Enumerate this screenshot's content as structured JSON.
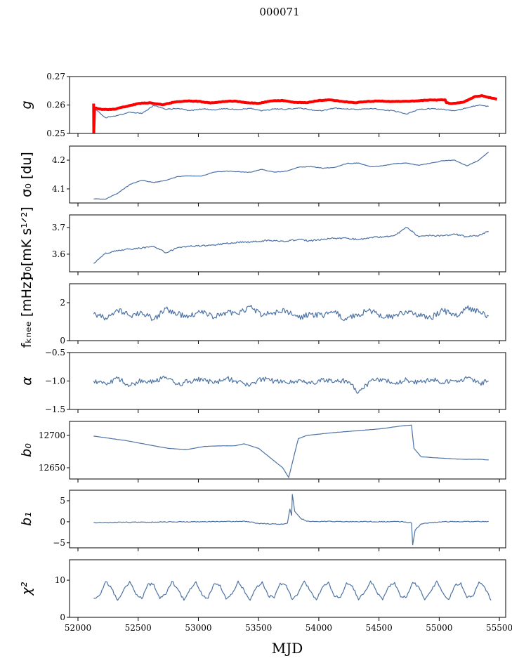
{
  "chart_data": {
    "type": "line",
    "title": "000071",
    "xlabel": "MJD",
    "xlim": [
      51930,
      55552
    ],
    "xticks": [
      52000,
      52500,
      53000,
      53500,
      54000,
      54500,
      55000,
      55500
    ],
    "xtick_labels": [
      "52000",
      "52500",
      "53000",
      "53500",
      "54000",
      "54500",
      "55000",
      "55500"
    ],
    "line_color": "#4c72a4",
    "red_color": "#ff0000",
    "panels": [
      {
        "ylabel": "g",
        "ylim": [
          0.25,
          0.27
        ],
        "yticks": [
          0.25,
          0.26,
          0.27
        ],
        "ytick_labels": [
          "0.25",
          "0.26",
          "0.27"
        ],
        "series": [
          {
            "name": "g",
            "color": "#4c72a4",
            "x": [
              52130,
              52230,
              52330,
              52430,
              52530,
              52630,
              52730,
              52830,
              52930,
              53030,
              53130,
              53230,
              53330,
              53430,
              53530,
              53630,
              53730,
              53830,
              53930,
              54030,
              54130,
              54230,
              54330,
              54430,
              54530,
              54630,
              54730,
              54830,
              54930,
              55030,
              55130,
              55230,
              55330,
              55410
            ],
            "y": [
              0.259,
              0.2555,
              0.2563,
              0.2575,
              0.257,
              0.2598,
              0.2585,
              0.2588,
              0.258,
              0.2586,
              0.2583,
              0.2587,
              0.2584,
              0.2588,
              0.258,
              0.2586,
              0.2585,
              0.259,
              0.2583,
              0.258,
              0.2589,
              0.2586,
              0.2584,
              0.2588,
              0.2583,
              0.2579,
              0.2568,
              0.2585,
              0.2587,
              0.2585,
              0.258,
              0.259,
              0.26,
              0.2595
            ]
          },
          {
            "name": "g_reference",
            "color": "#ff0000",
            "x": [
              52130,
              52131,
              52138,
              52200,
              52300,
              52400,
              52500,
              52600,
              52700,
              52800,
              52900,
              53000,
              53100,
              53200,
              53300,
              53400,
              53500,
              53600,
              53700,
              53800,
              53900,
              54000,
              54100,
              54200,
              54300,
              54400,
              54500,
              54600,
              54700,
              54800,
              54900,
              55000,
              55050,
              55060,
              55100,
              55200,
              55300,
              55350,
              55430,
              55480
            ],
            "y": [
              0.2605,
              0.25,
              0.259,
              0.2584,
              0.2585,
              0.2595,
              0.2605,
              0.2608,
              0.2601,
              0.261,
              0.2614,
              0.2613,
              0.2607,
              0.2612,
              0.2614,
              0.2608,
              0.2606,
              0.2614,
              0.2616,
              0.2609,
              0.2608,
              0.2616,
              0.2618,
              0.2612,
              0.2608,
              0.2612,
              0.2614,
              0.2612,
              0.2613,
              0.2614,
              0.2617,
              0.2618,
              0.2618,
              0.2608,
              0.2605,
              0.261,
              0.263,
              0.2633,
              0.2625,
              0.262
            ]
          }
        ]
      },
      {
        "ylabel": "σ₀ [du]",
        "ylim": [
          4.051,
          4.249
        ],
        "yticks": [
          4.1,
          4.2
        ],
        "ytick_labels": [
          "4.1",
          "4.2"
        ],
        "series": [
          {
            "name": "sigma0_du",
            "color": "#4c72a4",
            "x": [
              52130,
              52230,
              52330,
              52430,
              52530,
              52630,
              52730,
              52830,
              52930,
              53030,
              53130,
              53230,
              53330,
              53430,
              53530,
              53630,
              53730,
              53830,
              53930,
              54030,
              54130,
              54230,
              54330,
              54430,
              54530,
              54630,
              54730,
              54830,
              54930,
              55030,
              55130,
              55230,
              55330,
              55410
            ],
            "y": [
              4.065,
              4.064,
              4.085,
              4.115,
              4.13,
              4.122,
              4.13,
              4.143,
              4.145,
              4.145,
              4.158,
              4.162,
              4.16,
              4.158,
              4.168,
              4.158,
              4.162,
              4.175,
              4.178,
              4.172,
              4.175,
              4.188,
              4.19,
              4.177,
              4.18,
              4.188,
              4.19,
              4.182,
              4.19,
              4.198,
              4.2,
              4.18,
              4.2,
              4.228
            ]
          }
        ]
      },
      {
        "ylabel": "σ₀[mK s¹ᐟ²]",
        "ylim": [
          3.534,
          3.747
        ],
        "yticks": [
          3.6,
          3.7
        ],
        "ytick_labels": [
          "3.6",
          "3.7"
        ],
        "series": [
          {
            "name": "sigma0_mK",
            "color": "#4c72a4",
            "x": [
              52130,
              52230,
              52330,
              52430,
              52530,
              52630,
              52730,
              52830,
              52930,
              53030,
              53130,
              53230,
              53330,
              53430,
              53530,
              53630,
              53730,
              53830,
              53930,
              54030,
              54130,
              54230,
              54330,
              54430,
              54530,
              54630,
              54730,
              54830,
              54930,
              55030,
              55130,
              55230,
              55330,
              55410
            ],
            "y": [
              3.565,
              3.605,
              3.612,
              3.62,
              3.622,
              3.63,
              3.605,
              3.625,
              3.63,
              3.632,
              3.635,
              3.64,
              3.645,
              3.645,
              3.65,
              3.652,
              3.648,
              3.655,
              3.65,
              3.655,
              3.66,
              3.66,
              3.655,
              3.662,
              3.665,
              3.67,
              3.7,
              3.665,
              3.67,
              3.668,
              3.675,
              3.665,
              3.67,
              3.685
            ]
          }
        ]
      },
      {
        "ylabel": "fₖₙₑₑ [mHz]",
        "ylim": [
          0,
          3
        ],
        "yticks": [
          0,
          2
        ],
        "ytick_labels": [
          "0",
          "2"
        ],
        "series": [
          {
            "name": "fknee",
            "color": "#4c72a4",
            "x": [
              52130,
              52230,
              52330,
              52430,
              52530,
              52630,
              52730,
              52830,
              52930,
              53030,
              53130,
              53230,
              53330,
              53430,
              53530,
              53630,
              53730,
              53830,
              53930,
              54030,
              54130,
              54230,
              54330,
              54430,
              54530,
              54630,
              54730,
              54830,
              54930,
              55030,
              55130,
              55230,
              55330,
              55410
            ],
            "y": [
              1.4,
              1.2,
              1.6,
              1.3,
              1.5,
              1.1,
              1.7,
              1.4,
              1.3,
              1.6,
              1.2,
              1.5,
              1.4,
              1.8,
              1.3,
              1.5,
              1.6,
              1.2,
              1.4,
              1.3,
              1.5,
              1.1,
              1.4,
              1.6,
              1.2,
              1.3,
              1.5,
              1.4,
              1.2,
              1.6,
              1.3,
              1.7,
              1.5,
              1.3
            ]
          }
        ]
      },
      {
        "ylabel": "α",
        "ylim": [
          -1.5,
          -0.5
        ],
        "yticks": [
          -1.5,
          -1.0,
          -0.5
        ],
        "ytick_labels": [
          "−1.5",
          "−1.0",
          "−0.5"
        ],
        "series": [
          {
            "name": "alpha",
            "color": "#4c72a4",
            "x": [
              52130,
              52230,
              52330,
              52430,
              52530,
              52630,
              52730,
              52830,
              52930,
              53030,
              53130,
              53230,
              53330,
              53430,
              53530,
              53630,
              53730,
              53830,
              53930,
              54030,
              54130,
              54230,
              54330,
              54430,
              54530,
              54630,
              54730,
              54830,
              54930,
              55030,
              55130,
              55230,
              55330,
              55410
            ],
            "y": [
              -1.0,
              -1.05,
              -0.95,
              -1.08,
              -0.98,
              -1.02,
              -0.93,
              -1.06,
              -1.0,
              -0.97,
              -1.04,
              -0.95,
              -1.01,
              -1.07,
              -0.96,
              -1.0,
              -1.03,
              -0.98,
              -1.05,
              -0.97,
              -1.02,
              -0.99,
              -1.2,
              -1.0,
              -0.96,
              -1.04,
              -0.98,
              -1.02,
              -0.97,
              -1.03,
              -1.0,
              -0.95,
              -1.04,
              -1.0
            ]
          }
        ]
      },
      {
        "ylabel": "b₀",
        "ylim": [
          12632.6,
          12721.7
        ],
        "yticks": [
          12650,
          12700
        ],
        "ytick_labels": [
          "12650",
          "12700"
        ],
        "series": [
          {
            "name": "b0",
            "color": "#4c72a4",
            "x": [
              52130,
              52400,
              52600,
              52750,
              52900,
              53050,
              53200,
              53300,
              53380,
              53500,
              53600,
              53700,
              53750,
              53790,
              53830,
              53900,
              54100,
              54300,
              54500,
              54700,
              54770,
              54790,
              54850,
              55000,
              55200,
              55350,
              55410
            ],
            "y": [
              12699,
              12692,
              12685,
              12680,
              12678,
              12683,
              12684,
              12684,
              12687,
              12680,
              12665,
              12650,
              12635,
              12665,
              12695,
              12700,
              12704,
              12707,
              12710,
              12715,
              12716,
              12680,
              12667,
              12665,
              12663,
              12663,
              12662
            ]
          }
        ]
      },
      {
        "ylabel": "b₁",
        "ylim": [
          -6.2,
          7.5
        ],
        "yticks": [
          -5,
          0,
          5
        ],
        "ytick_labels": [
          "−5",
          "0",
          "5"
        ],
        "series": [
          {
            "name": "b1",
            "color": "#4c72a4",
            "x": [
              52130,
              53000,
              53400,
              53500,
              53700,
              53740,
              53760,
              53775,
              53780,
              53800,
              53850,
              53900,
              54700,
              54770,
              54780,
              54800,
              54850,
              55000,
              55410
            ],
            "y": [
              -0.2,
              0,
              0.1,
              -0.4,
              -0.6,
              -0.3,
              3,
              1.5,
              6.5,
              2.5,
              0.8,
              0.1,
              0,
              -0.3,
              -5.5,
              -2,
              -0.5,
              0,
              0.1
            ]
          }
        ]
      },
      {
        "ylabel": "χ²",
        "ylim": [
          0,
          15.5
        ],
        "yticks": [
          0,
          10
        ],
        "ytick_labels": [
          "0",
          "10"
        ],
        "series": [
          {
            "name": "chi2",
            "color": "#4c72a4",
            "x_start": 52130,
            "x_step": 50,
            "y": [
              5.1,
              6.0,
              9.6,
              7.7,
              4.6,
              7.5,
              9.7,
              6.2,
              5.0,
              8.9,
              8.9,
              5.0,
              6.2,
              9.7,
              7.5,
              4.6,
              7.7,
              9.6,
              6.0,
              5.1,
              9.0,
              8.7,
              4.9,
              6.3,
              9.8,
              7.3,
              4.6,
              7.9,
              9.6,
              5.8,
              5.2,
              9.2,
              8.6,
              4.8,
              6.6,
              9.8,
              7.1,
              4.7,
              8.1,
              9.5,
              5.6,
              5.4,
              9.3,
              8.4,
              4.7,
              6.8,
              9.8,
              6.9,
              4.7,
              8.3,
              9.4,
              5.5,
              5.5,
              9.4,
              8.2,
              4.7,
              7.0,
              9.8,
              6.7,
              4.8,
              8.5,
              9.3,
              5.3,
              5.7,
              9.5,
              8.0,
              4.6
            ]
          }
        ]
      }
    ]
  }
}
